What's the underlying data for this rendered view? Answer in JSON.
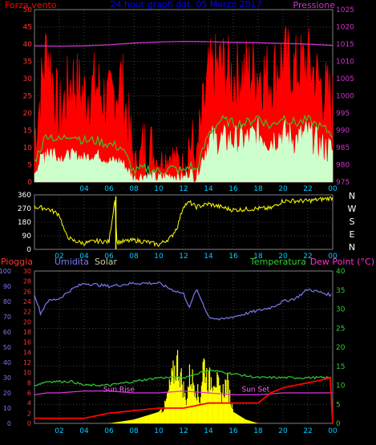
{
  "wind_panel": {
    "left_title": "Forza vento",
    "center_title": "24 hour graph dat. 05 Marzo 2017",
    "right_title": "Pressione",
    "left_ticks": [
      "0",
      "5",
      "10",
      "15",
      "20",
      "25",
      "30",
      "35",
      "40",
      "45",
      "50"
    ],
    "right_ticks": [
      "975",
      "980",
      "985",
      "990",
      "995",
      "1000",
      "1005",
      "1010",
      "1015",
      "1020",
      "1025"
    ],
    "x_ticks": [
      "04",
      "06",
      "08",
      "10",
      "12",
      "14",
      "16",
      "18",
      "20",
      "22",
      "00"
    ]
  },
  "direction_panel": {
    "ticks": [
      "0",
      "90",
      "180",
      "270",
      "360"
    ],
    "compass": [
      "N",
      "W",
      "S",
      "E",
      "N"
    ],
    "x_ticks": [
      "02",
      "04",
      "06",
      "08",
      "10",
      "12",
      "14",
      "16",
      "18",
      "20",
      "22",
      "00"
    ]
  },
  "weather_panel": {
    "legend": {
      "rain": "Pioggia",
      "humidity": "Umidita",
      "solar": "Solar",
      "temperature": "Temperatura",
      "dewpoint": "Dew Point (°C)"
    },
    "humidity_ticks": [
      "0",
      "10",
      "20",
      "30",
      "40",
      "50",
      "60",
      "70",
      "80",
      "90",
      "100"
    ],
    "rain_ticks": [
      "0",
      "2",
      "4",
      "6",
      "8",
      "10",
      "12",
      "14",
      "16",
      "18",
      "20",
      "22",
      "24",
      "26",
      "28",
      "30"
    ],
    "temp_ticks": [
      "0",
      "5",
      "10",
      "15",
      "20",
      "25",
      "30",
      "35",
      "40"
    ],
    "x_ticks": [
      "02",
      "04",
      "06",
      "08",
      "10",
      "12",
      "14",
      "16",
      "18",
      "20",
      "22",
      "00"
    ],
    "annotations": {
      "sunrise": "Sun Rise",
      "sunset": "Sun Set"
    }
  },
  "colors": {
    "background": "#000000",
    "grid": "#808080",
    "wind_gust": "#ff0000",
    "wind_avg": "#33cc33",
    "wind_speed": "#ccffcc",
    "pressure": "#cc33cc",
    "direction": "#ffff00",
    "humidity": "#7a7aee",
    "temperature": "#33cc33",
    "dewpoint": "#dd33dd",
    "solar": "#ffff00",
    "rain": "#ff0000",
    "title": "#0000ff"
  },
  "chart_data": [
    {
      "type": "line",
      "name": "wind",
      "x_unit": "hour",
      "xlim": [
        0,
        24
      ],
      "ylim": [
        0,
        50
      ],
      "y2lim": [
        975,
        1025
      ],
      "series": [
        {
          "name": "Forza vento",
          "key": "gust",
          "axis": "left",
          "x": [
            0,
            1,
            2,
            3,
            4,
            5,
            6,
            7,
            8,
            9,
            10,
            11,
            12,
            12.5,
            13,
            14,
            15,
            16,
            17,
            18,
            19,
            20,
            21,
            22,
            23,
            24
          ],
          "y": [
            12,
            40,
            18,
            30,
            25,
            28,
            22,
            30,
            5,
            10,
            6,
            8,
            5,
            12,
            5,
            30,
            34,
            30,
            32,
            32,
            30,
            36,
            32,
            35,
            28,
            22
          ]
        },
        {
          "name": "",
          "key": "avg",
          "axis": "left",
          "x": [
            0,
            1,
            2,
            3,
            4,
            5,
            6,
            7,
            8,
            9,
            10,
            11,
            12,
            12.5,
            13,
            14,
            15,
            16,
            17,
            18,
            19,
            20,
            21,
            22,
            23,
            24
          ],
          "y": [
            6,
            14,
            12,
            14,
            12,
            12,
            11,
            10,
            3,
            4,
            3,
            4,
            3,
            5,
            3,
            14,
            18,
            17,
            17,
            19,
            16,
            19,
            17,
            18,
            16,
            14
          ]
        },
        {
          "name": "",
          "key": "speed",
          "axis": "left",
          "x": [
            0,
            1,
            2,
            3,
            4,
            5,
            6,
            7,
            8,
            9,
            10,
            11,
            12,
            12.5,
            13,
            14,
            15,
            16,
            17,
            18,
            19,
            20,
            21,
            22,
            23,
            24
          ],
          "y": [
            3,
            10,
            7,
            8,
            7,
            8,
            6,
            6,
            1,
            2,
            1,
            2,
            1,
            3,
            1,
            12,
            12,
            12,
            12,
            14,
            12,
            14,
            12,
            14,
            10,
            9
          ]
        },
        {
          "name": "Pressione",
          "key": "pressure",
          "axis": "right",
          "x": [
            0,
            2,
            4,
            6,
            8,
            10,
            12,
            14,
            16,
            18,
            20,
            22,
            24
          ],
          "y": [
            1014.5,
            1014.4,
            1014.5,
            1014.8,
            1015.3,
            1015.6,
            1015.8,
            1015.7,
            1015.5,
            1015.4,
            1015.2,
            1015,
            1014.6
          ]
        }
      ]
    },
    {
      "type": "line",
      "name": "wind_direction",
      "x_unit": "hour",
      "xlim": [
        0,
        24
      ],
      "ylim": [
        0,
        360
      ],
      "series": [
        {
          "name": "",
          "key": "direction",
          "x": [
            0,
            1,
            2,
            2.5,
            3,
            4,
            5,
            6,
            6.5,
            6.6,
            7,
            8,
            9,
            10,
            11,
            11.5,
            12,
            12.5,
            13,
            14,
            16,
            18,
            19,
            20,
            22,
            24
          ],
          "y": [
            280,
            270,
            230,
            100,
            60,
            40,
            55,
            50,
            350,
            50,
            50,
            60,
            50,
            30,
            80,
            150,
            290,
            310,
            280,
            300,
            260,
            270,
            270,
            320,
            320,
            340
          ]
        }
      ]
    },
    {
      "type": "line",
      "name": "weather",
      "x_unit": "hour",
      "xlim": [
        0,
        24
      ],
      "series": [
        {
          "name": "Umidita",
          "key": "humidity",
          "axis": "humidity",
          "ylim": [
            0,
            100
          ],
          "x": [
            0,
            0.5,
            1,
            2,
            3,
            4,
            6,
            8,
            10,
            11,
            12,
            12.5,
            13,
            13.5,
            14,
            15,
            16,
            17,
            18,
            19,
            20,
            21,
            22,
            23,
            24
          ],
          "y": [
            85,
            72,
            80,
            82,
            88,
            92,
            90,
            92,
            92,
            88,
            85,
            76,
            88,
            80,
            70,
            68,
            70,
            72,
            74,
            76,
            80,
            82,
            88,
            86,
            84
          ]
        },
        {
          "name": "Temperatura",
          "key": "temperature",
          "axis": "temp",
          "ylim": [
            0,
            40
          ],
          "x": [
            0,
            1,
            2,
            3,
            4,
            6,
            8,
            10,
            12,
            13,
            14,
            16,
            18,
            20,
            22,
            24
          ],
          "y": [
            10,
            11,
            11,
            11,
            10,
            10,
            11,
            12,
            12,
            13,
            14,
            13,
            12,
            12,
            12,
            12
          ]
        },
        {
          "name": "Dew Point (°C)",
          "key": "dewpoint",
          "axis": "temp",
          "ylim": [
            0,
            40
          ],
          "x": [
            0,
            1,
            2,
            4,
            6,
            8,
            10,
            12,
            14,
            16,
            18,
            20,
            22,
            24
          ],
          "y": [
            7.5,
            8,
            8,
            8.5,
            8.5,
            8,
            8,
            8.5,
            8,
            7.5,
            7.5,
            8,
            8,
            8
          ]
        },
        {
          "name": "Solar",
          "key": "solar",
          "axis": "temp",
          "ylim": [
            0,
            40
          ],
          "x": [
            6,
            7,
            8,
            9,
            10,
            10.5,
            11,
            11.5,
            12,
            12.2,
            12.5,
            13,
            13.3,
            13.6,
            14,
            14.5,
            15,
            15.5,
            16,
            17,
            18
          ],
          "y": [
            0,
            0.5,
            1,
            2,
            3,
            5,
            12,
            18,
            10,
            6,
            14,
            11,
            6,
            18,
            12,
            14,
            8,
            12,
            3,
            1,
            0
          ]
        },
        {
          "name": "Pioggia",
          "key": "rain",
          "axis": "rain",
          "ylim": [
            0,
            30
          ],
          "x": [
            0,
            4,
            6,
            10,
            12,
            14,
            16,
            18,
            19,
            20,
            22,
            23,
            23.8,
            24
          ],
          "y": [
            1,
            1,
            2,
            3,
            3,
            4,
            4,
            4,
            6,
            7,
            8,
            8.5,
            9,
            0
          ]
        }
      ],
      "annotations": [
        {
          "text": "Sun Rise",
          "x": 6.8,
          "y_temp": 9
        },
        {
          "text": "Sun Set",
          "x": 17.8,
          "y_temp": 9
        }
      ]
    }
  ]
}
